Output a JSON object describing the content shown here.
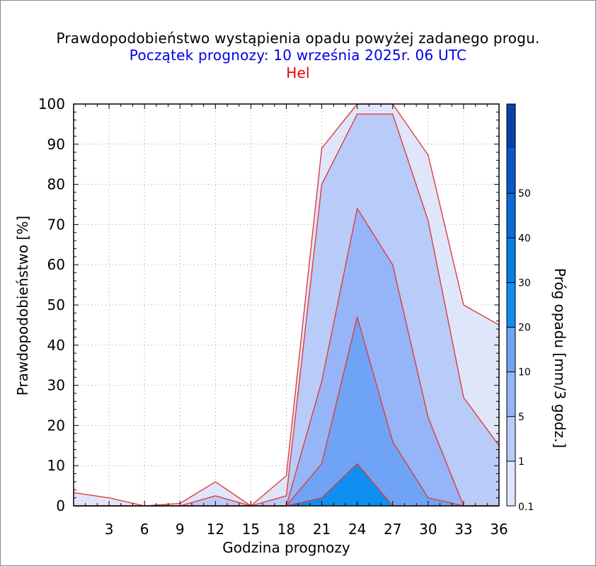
{
  "title": "Prawdopodobieństwo wystąpienia opadu powyżej zadanego progu.",
  "subtitle": "Początek prognozy: 10 września 2025r. 06 UTC",
  "location": "Hel",
  "chart_data": {
    "type": "area",
    "title": "Prawdopodobieństwo wystąpienia opadu powyżej zadanego progu.",
    "xlabel": "Godzina prognozy",
    "ylabel": "Prawdopodobieństwo [%]",
    "colorbar_label": "Próg opadu [mm/3 godz.]",
    "xlim": [
      0,
      36
    ],
    "ylim": [
      0,
      100
    ],
    "x": [
      0,
      3,
      6,
      9,
      12,
      15,
      18,
      21,
      24,
      27,
      30,
      33,
      36
    ],
    "x_tick_labels": [
      "3",
      "6",
      "9",
      "12",
      "15",
      "18",
      "21",
      "24",
      "27",
      "30",
      "33",
      "36"
    ],
    "y_tick_labels": [
      "0",
      "10",
      "20",
      "30",
      "40",
      "50",
      "60",
      "70",
      "80",
      "90",
      "100"
    ],
    "grid": true,
    "series": [
      {
        "name": "0.1",
        "color": "#e0e6fa",
        "values": [
          3.3,
          2,
          0,
          0.6,
          6,
          0,
          7.5,
          89,
          100,
          100,
          87.3,
          50,
          45
        ]
      },
      {
        "name": "1",
        "color": "#b9cbf8",
        "values": [
          0,
          0,
          0,
          0,
          2.5,
          0,
          2.5,
          80,
          97.5,
          97.5,
          71,
          27,
          15
        ]
      },
      {
        "name": "5",
        "color": "#95b5f8",
        "values": [
          0,
          0,
          0,
          0,
          0,
          0,
          0,
          31,
          74,
          60,
          22,
          0,
          0
        ]
      },
      {
        "name": "10",
        "color": "#6fa3f5",
        "values": [
          0,
          0,
          0,
          0,
          0,
          0,
          0,
          10.5,
          47,
          16,
          2,
          0,
          0
        ]
      },
      {
        "name": "20",
        "color": "#0f8ff0",
        "values": [
          0,
          0,
          0,
          0,
          0,
          0,
          0,
          2,
          10.5,
          0,
          0,
          0,
          0
        ]
      }
    ],
    "colorbar": {
      "labels": [
        "0.1",
        "1",
        "5",
        "10",
        "20",
        "30",
        "40",
        "50"
      ],
      "colors": [
        "#e0e6fa",
        "#b9cbf8",
        "#95b5f8",
        "#6fa3f5",
        "#0f8ff0",
        "#0a7ee4",
        "#0a6cd8",
        "#0a57c6",
        "#0841ac"
      ]
    },
    "outline_color": "#e03c3c"
  }
}
